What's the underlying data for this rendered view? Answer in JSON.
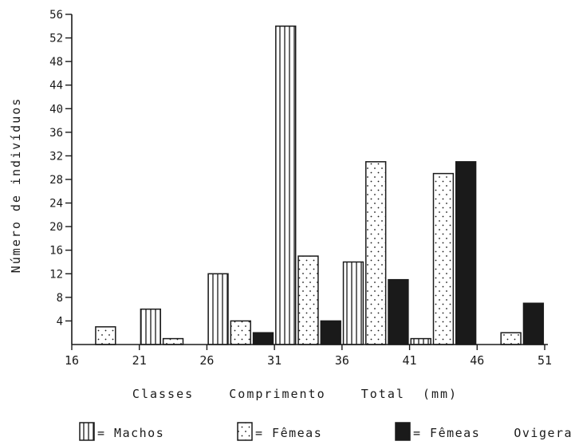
{
  "chart_data": {
    "type": "bar",
    "xlabel": "Classes    Comprimento    Total  (mm)",
    "ylabel": "Número   de   indivíduos",
    "ylim": [
      0,
      56
    ],
    "yticks": [
      4,
      8,
      12,
      16,
      20,
      24,
      28,
      32,
      36,
      40,
      44,
      48,
      52,
      56
    ],
    "xticks": [
      16,
      21,
      26,
      31,
      36,
      41,
      46,
      51
    ],
    "xlim": [
      16,
      51
    ],
    "bin_width": 5,
    "grid": false,
    "legend_position": "bottom",
    "series": [
      {
        "name": "= Machos",
        "pattern": "vertical-stripes",
        "values": [
          {
            "x": 16,
            "y": 0
          },
          {
            "x": 21,
            "y": 6
          },
          {
            "x": 26,
            "y": 12
          },
          {
            "x": 31,
            "y": 54
          },
          {
            "x": 36,
            "y": 14
          },
          {
            "x": 41,
            "y": 1
          },
          {
            "x": 46,
            "y": 0
          }
        ]
      },
      {
        "name": "= Fêmeas",
        "pattern": "dots",
        "values": [
          {
            "x": 16,
            "y": 3
          },
          {
            "x": 21,
            "y": 1
          },
          {
            "x": 26,
            "y": 4
          },
          {
            "x": 31,
            "y": 15
          },
          {
            "x": 36,
            "y": 31
          },
          {
            "x": 41,
            "y": 29
          },
          {
            "x": 46,
            "y": 2
          }
        ]
      },
      {
        "name": "= Fêmeas    Ovigeras",
        "pattern": "solid-black",
        "values": [
          {
            "x": 16,
            "y": 0
          },
          {
            "x": 21,
            "y": 0
          },
          {
            "x": 26,
            "y": 2
          },
          {
            "x": 31,
            "y": 4
          },
          {
            "x": 36,
            "y": 11
          },
          {
            "x": 41,
            "y": 31
          },
          {
            "x": 46,
            "y": 7
          }
        ]
      }
    ]
  },
  "colors": {
    "ink": "#1a1a1a",
    "paper": "#ffffff"
  }
}
